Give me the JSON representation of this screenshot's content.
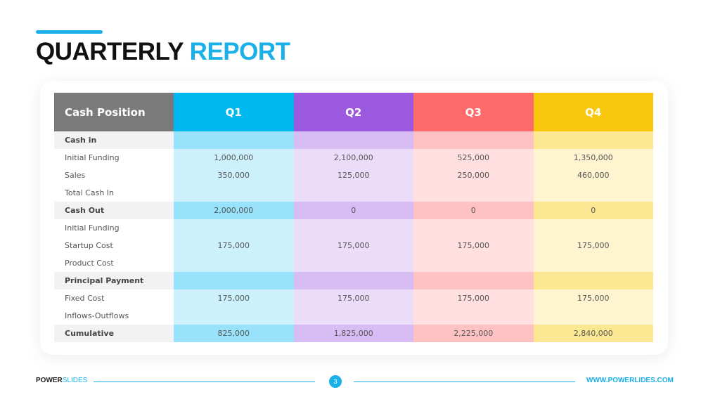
{
  "title": {
    "part1": "QUARTERLY",
    "part2": "REPORT"
  },
  "table": {
    "header": [
      "Cash Position",
      "Q1",
      "Q2",
      "Q3",
      "Q4"
    ],
    "rows": [
      {
        "type": "sec",
        "label": "Cash in",
        "values": [
          "",
          "",
          "",
          ""
        ]
      },
      {
        "type": "plain",
        "label": "Initial Funding",
        "values": [
          "1,000,000",
          "2,100,000",
          "525,000",
          "1,350,000"
        ]
      },
      {
        "type": "plain",
        "label": "Sales",
        "values": [
          "350,000",
          "125,000",
          "250,000",
          "460,000"
        ]
      },
      {
        "type": "plain",
        "label": "Total Cash In",
        "values": [
          "",
          "",
          "",
          ""
        ]
      },
      {
        "type": "sec",
        "label": "Cash Out",
        "values": [
          "2,000,000",
          "0",
          "0",
          "0"
        ]
      },
      {
        "type": "plain",
        "label": "Initial Funding",
        "values": [
          "",
          "",
          "",
          ""
        ]
      },
      {
        "type": "plain",
        "label": "Startup Cost",
        "values": [
          "175,000",
          "175,000",
          "175,000",
          "175,000"
        ]
      },
      {
        "type": "plain",
        "label": "Product Cost",
        "values": [
          "",
          "",
          "",
          ""
        ]
      },
      {
        "type": "sec",
        "label": "Principal Payment",
        "values": [
          "",
          "",
          "",
          ""
        ]
      },
      {
        "type": "plain",
        "label": "Fixed Cost",
        "values": [
          "175,000",
          "175,000",
          "175,000",
          "175,000"
        ]
      },
      {
        "type": "plain",
        "label": "Inflows-Outflows",
        "values": [
          "",
          "",
          "",
          ""
        ]
      },
      {
        "type": "sec",
        "label": "Cumulative",
        "values": [
          "825,000",
          "1,825,000",
          "2,225,000",
          "2,840,000"
        ]
      }
    ]
  },
  "footer": {
    "brand1": "POWER",
    "brand2": "SLIDES",
    "page": "3",
    "url": "WWW.POWERLIDES.COM"
  }
}
